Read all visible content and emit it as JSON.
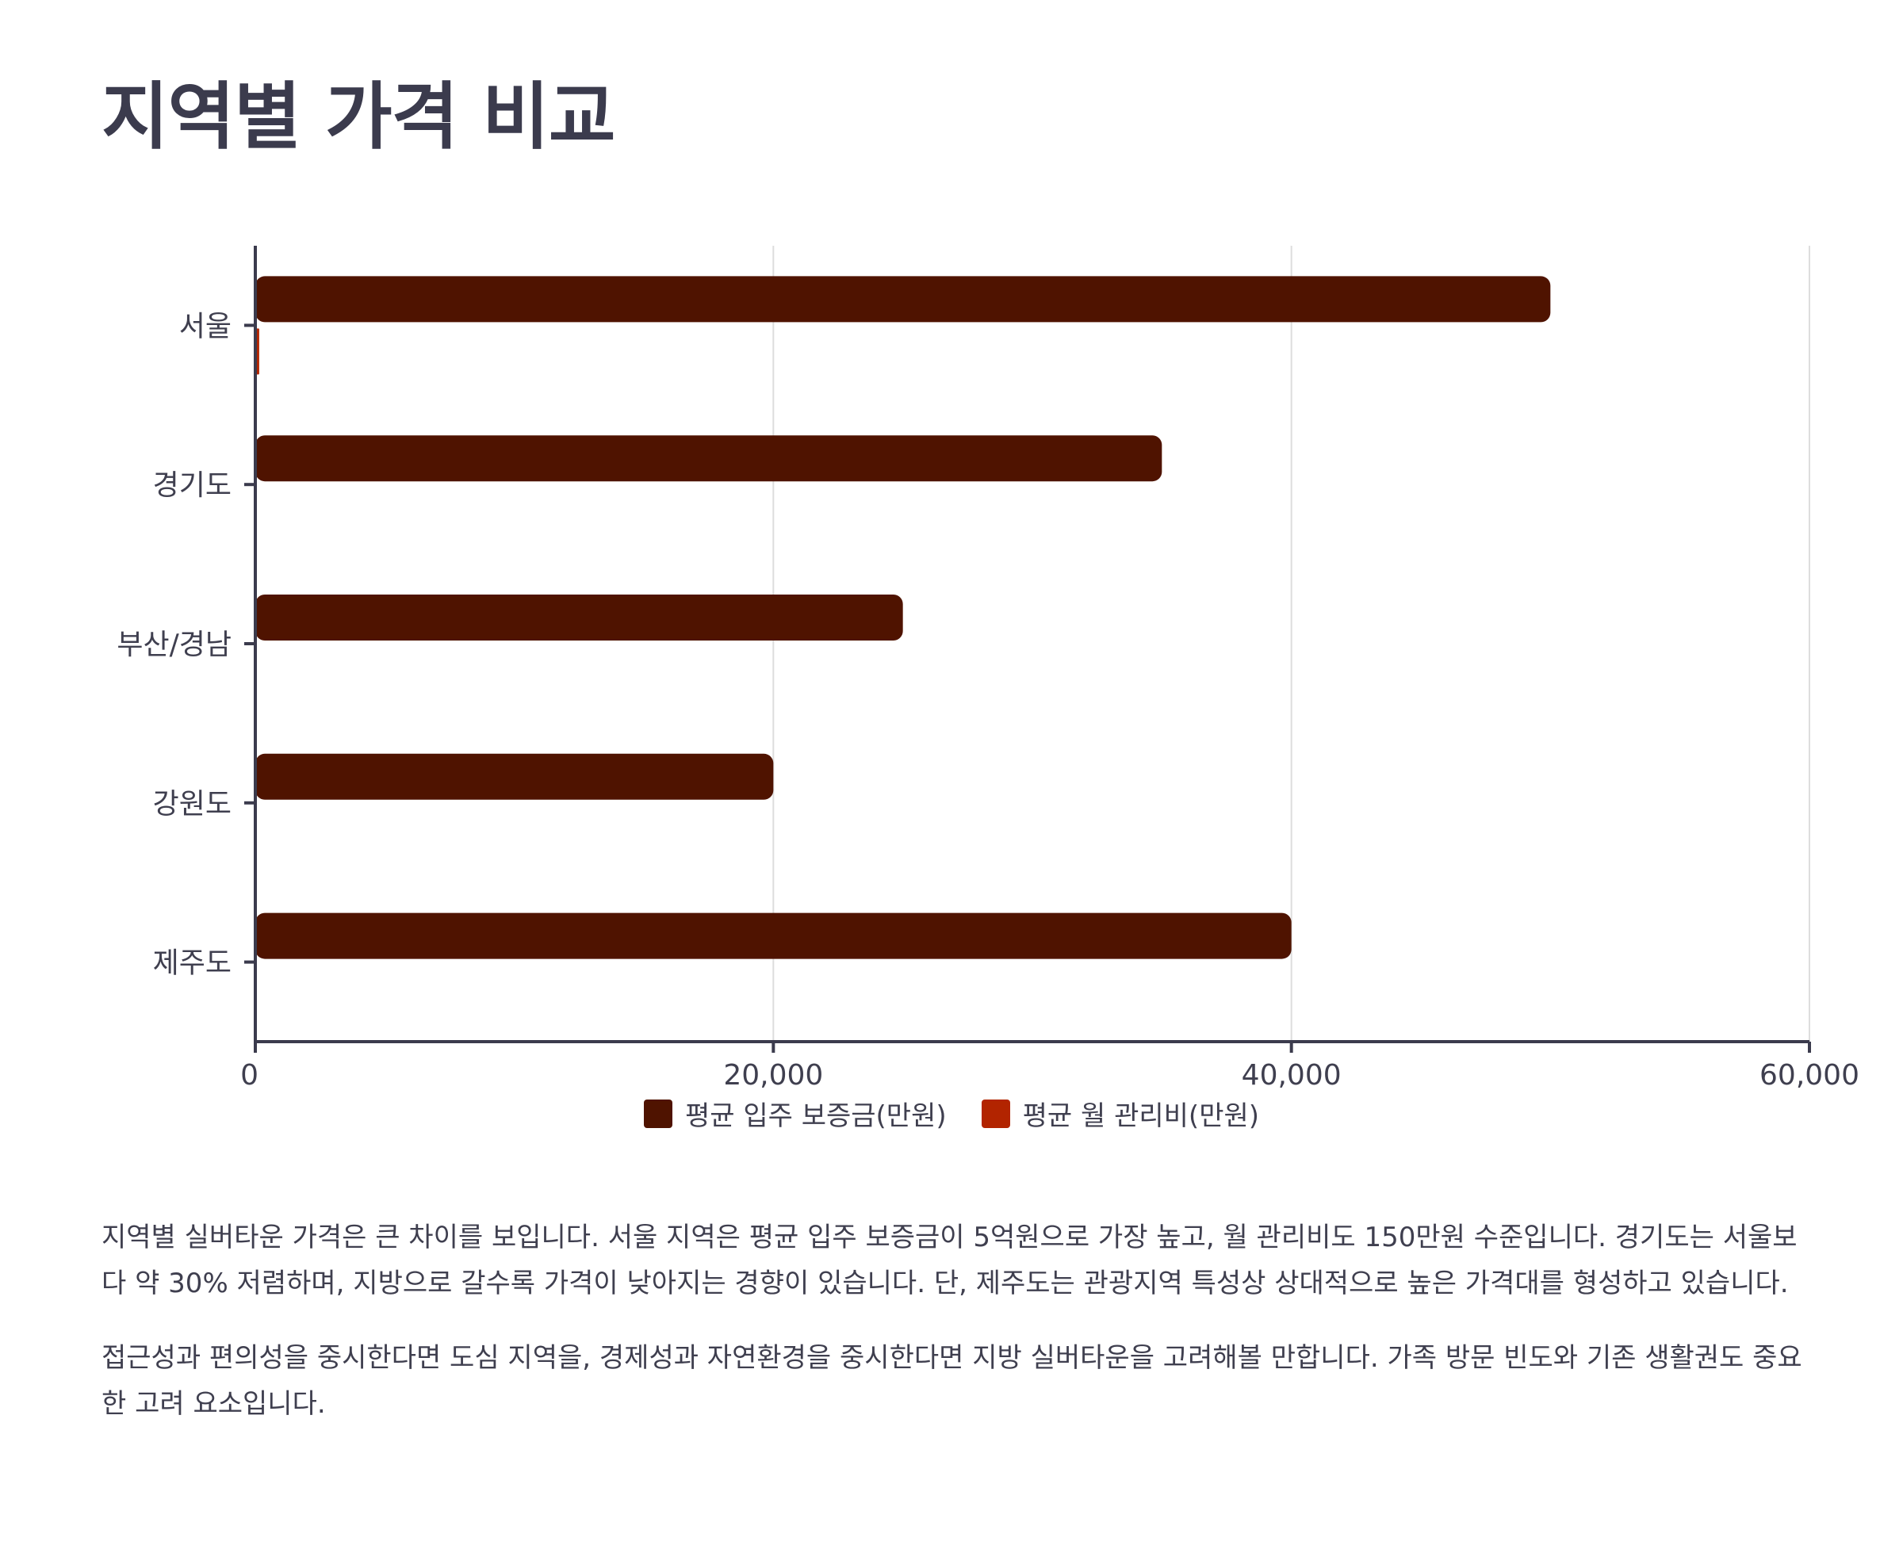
{
  "title": "지역별 가격 비교",
  "chart_data": {
    "type": "bar",
    "orientation": "horizontal",
    "categories": [
      "서울",
      "경기도",
      "부산/경남",
      "강원도",
      "제주도"
    ],
    "series": [
      {
        "name": "평균 입주 보증금(만원)",
        "values": [
          50000,
          35000,
          25000,
          20000,
          40000
        ],
        "color": "#4f1300"
      },
      {
        "name": "평균 월 관리비(만원)",
        "values": [
          150,
          null,
          null,
          null,
          null
        ],
        "color": "#b22400"
      }
    ],
    "x_ticks": [
      "0",
      "20,000",
      "40,000",
      "60,000"
    ],
    "xlim": [
      0,
      60000
    ],
    "grid": true,
    "legend_position": "bottom"
  },
  "paragraphs": [
    "지역별 실버타운 가격은 큰 차이를 보입니다. 서울 지역은 평균 입주 보증금이 5억원으로 가장 높고, 월 관리비도 150만원 수준입니다. 경기도는 서울보다 약 30% 저렴하며, 지방으로 갈수록 가격이 낮아지는 경향이 있습니다. 단, 제주도는 관광지역 특성상 상대적으로 높은 가격대를 형성하고 있습니다.",
    "접근성과 편의성을 중시한다면 도심 지역을, 경제성과 자연환경을 중시한다면 지방 실버타운을 고려해볼 만합니다. 가족 방문 빈도와 기존 생활권도 중요한 고려 요소입니다."
  ]
}
